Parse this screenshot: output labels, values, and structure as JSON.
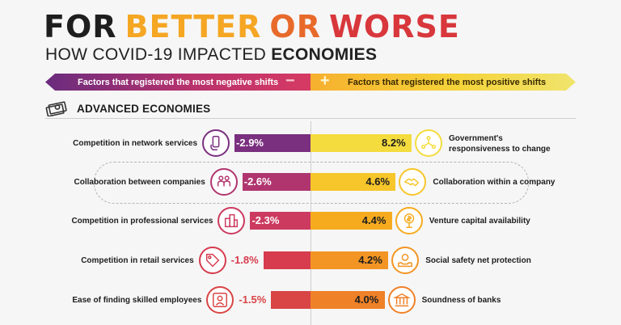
{
  "header": {
    "title_words": [
      "FOR",
      "BETTER",
      "OR",
      "WORSE"
    ],
    "subtitle_prefix": "HOW COVID-19 IMPACTED ",
    "subtitle_bold": "ECONOMIES"
  },
  "legend": {
    "negative_label": "Factors that registered the most negative shifts",
    "negative_sign": "−",
    "positive_sign": "+",
    "positive_label": "Factors that registered the most positive shifts"
  },
  "section": {
    "label": "ADVANCED ECONOMIES",
    "icon": "cash-stack-icon"
  },
  "colors": {
    "neg": [
      "#7a2f7f",
      "#b0356f",
      "#cc3a5f",
      "#d63c4e",
      "#d94445"
    ],
    "pos": [
      "#f4dc3e",
      "#f6c62a",
      "#f6ab1f",
      "#f39524",
      "#ef8128"
    ]
  },
  "chart_data": {
    "type": "bar",
    "title": "Advanced Economies",
    "negative": {
      "name": "Factors that registered the most negative shifts",
      "categories": [
        "Competition in network services",
        "Collaboration between companies",
        "Competition in professional services",
        "Competition in retail services",
        "Ease of finding skilled employees"
      ],
      "values": [
        -2.9,
        -2.6,
        -2.3,
        -1.8,
        -1.5
      ],
      "labels": [
        "-2.9%",
        "-2.6%",
        "-2.3%",
        "-1.8%",
        "-1.5%"
      ],
      "icons": [
        "phone-hand-icon",
        "collaboration-people-icon",
        "professional-buildings-icon",
        "price-tag-icon",
        "skilled-worker-icon"
      ]
    },
    "positive": {
      "name": "Factors that registered the most positive shifts",
      "categories": [
        "Government's responsiveness to change",
        "Collaboration within a company",
        "Venture capital availability",
        "Social safety net protection",
        "Soundness of banks"
      ],
      "values": [
        8.2,
        4.6,
        4.4,
        4.2,
        4.0
      ],
      "labels": [
        "8.2%",
        "4.6%",
        "4.4%",
        "4.2%",
        "4.0%"
      ],
      "icons": [
        "government-network-icon",
        "handshake-icon",
        "dollar-plant-icon",
        "safety-hands-icon",
        "bank-icon"
      ]
    },
    "xlim": [
      -3.0,
      8.5
    ]
  }
}
